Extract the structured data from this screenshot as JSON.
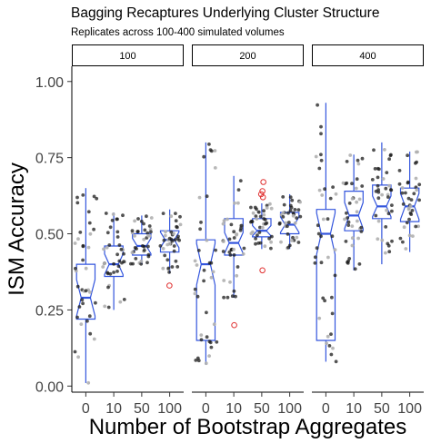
{
  "chart_data": {
    "type": "box",
    "title": "Bagging Recaptures Underlying Cluster Structure",
    "subtitle": "Replicates across 100-400 simulated volumes",
    "xlabel": "Number of Bootstrap Aggregates",
    "ylabel": "ISM Accuracy",
    "categories": [
      "0",
      "10",
      "50",
      "100"
    ],
    "yticks": [
      "0.00",
      "0.25",
      "0.50",
      "0.75",
      "1.00"
    ],
    "ylim": [
      -0.02,
      1.05
    ],
    "grid": false,
    "colors": {
      "box": "#3355dd",
      "point": "#1a1a1a",
      "point_light": "#b0b0b0",
      "outlier": "#e03030"
    },
    "panels": [
      {
        "label": "100",
        "boxes": [
          {
            "category": "0",
            "whisker_low": 0.01,
            "q1": 0.22,
            "median": 0.29,
            "q3": 0.4,
            "whisker_high": 0.65,
            "outliers": []
          },
          {
            "category": "10",
            "whisker_low": 0.25,
            "q1": 0.36,
            "median": 0.4,
            "q3": 0.46,
            "whisker_high": 0.57,
            "outliers": []
          },
          {
            "category": "50",
            "whisker_low": 0.4,
            "q1": 0.43,
            "median": 0.46,
            "q3": 0.5,
            "whisker_high": 0.56,
            "outliers": []
          },
          {
            "category": "100",
            "whisker_low": 0.37,
            "q1": 0.44,
            "median": 0.48,
            "q3": 0.51,
            "whisker_high": 0.58,
            "outliers": [
              0.33
            ]
          }
        ]
      },
      {
        "label": "200",
        "boxes": [
          {
            "category": "0",
            "whisker_low": 0.07,
            "q1": 0.15,
            "median": 0.4,
            "q3": 0.48,
            "whisker_high": 0.8,
            "outliers": []
          },
          {
            "category": "10",
            "whisker_low": 0.29,
            "q1": 0.43,
            "median": 0.47,
            "q3": 0.55,
            "whisker_high": 0.69,
            "outliers": [
              0.2
            ]
          },
          {
            "category": "50",
            "whisker_low": 0.45,
            "q1": 0.49,
            "median": 0.51,
            "q3": 0.55,
            "whisker_high": 0.6,
            "outliers": [
              0.38,
              0.62,
              0.63,
              0.64,
              0.67
            ]
          },
          {
            "category": "100",
            "whisker_low": 0.45,
            "q1": 0.5,
            "median": 0.53,
            "q3": 0.57,
            "whisker_high": 0.63,
            "outliers": []
          }
        ]
      },
      {
        "label": "400",
        "boxes": [
          {
            "category": "0",
            "whisker_low": 0.08,
            "q1": 0.15,
            "median": 0.5,
            "q3": 0.58,
            "whisker_high": 0.93,
            "outliers": []
          },
          {
            "category": "10",
            "whisker_low": 0.38,
            "q1": 0.51,
            "median": 0.56,
            "q3": 0.64,
            "whisker_high": 0.76,
            "outliers": []
          },
          {
            "category": "50",
            "whisker_low": 0.4,
            "q1": 0.55,
            "median": 0.59,
            "q3": 0.66,
            "whisker_high": 0.8,
            "outliers": []
          },
          {
            "category": "100",
            "whisker_low": 0.44,
            "q1": 0.54,
            "median": 0.59,
            "q3": 0.65,
            "whisker_high": 0.77,
            "outliers": []
          }
        ]
      }
    ]
  }
}
